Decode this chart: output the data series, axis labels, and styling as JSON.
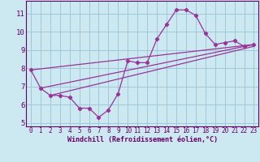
{
  "xlabel": "Windchill (Refroidissement éolien,°C)",
  "bg_color": "#cce8f0",
  "grid_color": "#a0c8d8",
  "line_color": "#993399",
  "xlim": [
    -0.5,
    23.5
  ],
  "ylim": [
    4.8,
    11.7
  ],
  "yticks": [
    5,
    6,
    7,
    8,
    9,
    10,
    11
  ],
  "xticks": [
    0,
    1,
    2,
    3,
    4,
    5,
    6,
    7,
    8,
    9,
    10,
    11,
    12,
    13,
    14,
    15,
    16,
    17,
    18,
    19,
    20,
    21,
    22,
    23
  ],
  "series1_x": [
    0,
    1,
    2,
    3,
    4,
    5,
    6,
    7,
    8,
    9,
    10,
    11,
    12,
    13,
    14,
    15,
    16,
    17,
    18,
    19,
    20,
    21,
    22,
    23
  ],
  "series1_y": [
    7.9,
    6.9,
    6.5,
    6.5,
    6.4,
    5.8,
    5.8,
    5.3,
    5.7,
    6.6,
    8.4,
    8.3,
    8.3,
    9.6,
    10.4,
    11.2,
    11.2,
    10.9,
    9.9,
    9.3,
    9.4,
    9.5,
    9.2,
    9.3
  ],
  "line_straight1": [
    [
      0,
      7.9
    ],
    [
      23,
      9.3
    ]
  ],
  "line_straight2": [
    [
      1,
      6.9
    ],
    [
      23,
      9.3
    ]
  ],
  "line_straight3": [
    [
      2,
      6.5
    ],
    [
      23,
      9.2
    ]
  ]
}
